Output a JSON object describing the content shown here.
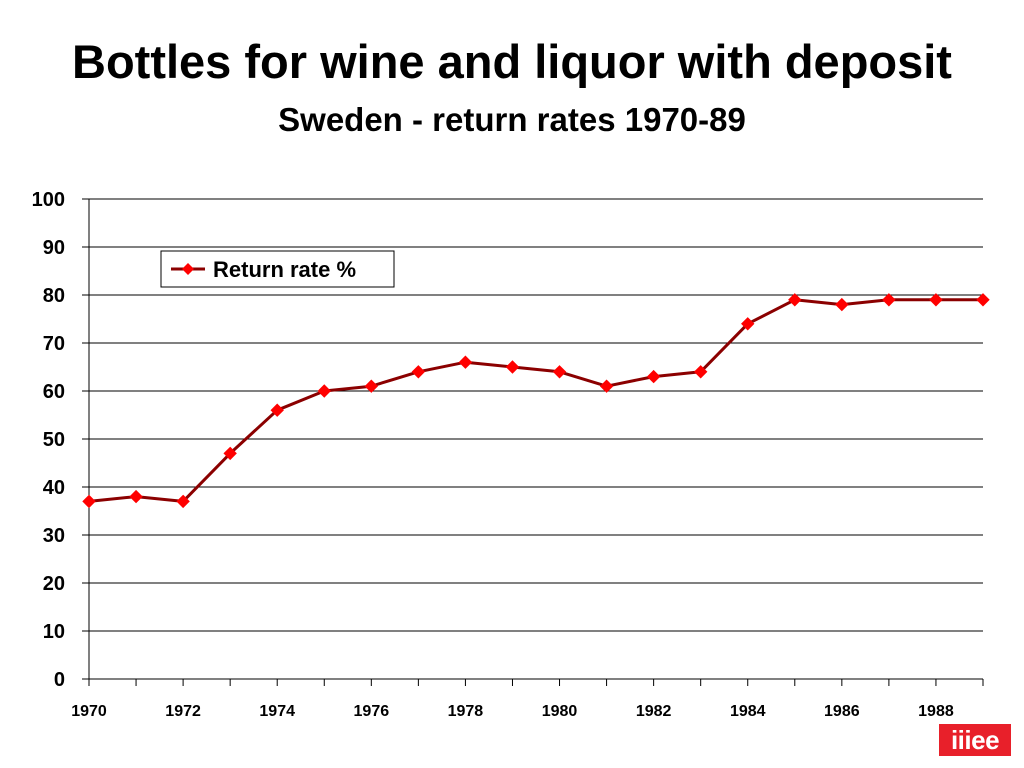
{
  "title": "Bottles for wine and liquor with deposit",
  "subtitle": "Sweden - return rates 1970-89",
  "logo_text": "iiiee",
  "colors": {
    "line": "#8b0000",
    "marker": "#ff0000",
    "gridline": "#000000",
    "logo_background": "#e8202a"
  },
  "chart_data": {
    "type": "line",
    "title": "Bottles for wine and liquor with deposit",
    "subtitle": "Sweden - return rates 1970-89",
    "xlabel": "",
    "ylabel": "",
    "x": [
      1970,
      1971,
      1972,
      1973,
      1974,
      1975,
      1976,
      1977,
      1978,
      1979,
      1980,
      1981,
      1982,
      1983,
      1984,
      1985,
      1986,
      1987,
      1988,
      1989
    ],
    "series": [
      {
        "name": "Return rate %",
        "marker": "diamond",
        "values": [
          37,
          38,
          37,
          47,
          56,
          60,
          61,
          64,
          66,
          65,
          64,
          61,
          63,
          64,
          74,
          79,
          78,
          79,
          79,
          79
        ]
      }
    ],
    "ylim": [
      0,
      100
    ],
    "y_ticks": [
      0,
      10,
      20,
      30,
      40,
      50,
      60,
      70,
      80,
      90,
      100
    ],
    "x_tick_labels": [
      "1970",
      "1972",
      "1974",
      "1976",
      "1978",
      "1980",
      "1982",
      "1984",
      "1986",
      "1988"
    ],
    "grid": "horizontal",
    "legend_position": "top-left"
  }
}
